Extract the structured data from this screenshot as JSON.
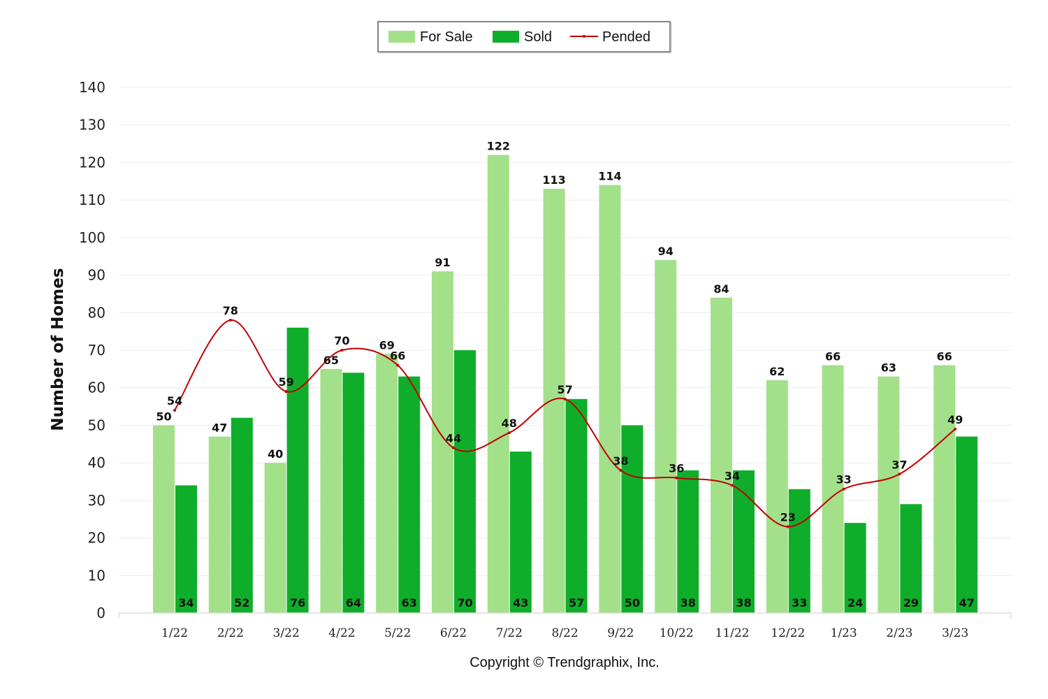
{
  "chart_data": {
    "type": "bar",
    "categories": [
      "1/22",
      "2/22",
      "3/22",
      "4/22",
      "5/22",
      "6/22",
      "7/22",
      "8/22",
      "9/22",
      "10/22",
      "11/22",
      "12/22",
      "1/23",
      "2/23",
      "3/23"
    ],
    "series": [
      {
        "name": "For Sale",
        "type": "bar",
        "color": "#a3e08a",
        "values": [
          50,
          47,
          40,
          65,
          69,
          91,
          122,
          113,
          114,
          94,
          84,
          62,
          66,
          63,
          66
        ]
      },
      {
        "name": "Sold",
        "type": "bar",
        "color": "#0fae2a",
        "values": [
          34,
          52,
          76,
          64,
          63,
          70,
          43,
          57,
          50,
          38,
          38,
          33,
          24,
          29,
          47
        ]
      },
      {
        "name": "Pended",
        "type": "line",
        "color": "#c00000",
        "values": [
          54,
          78,
          59,
          70,
          66,
          44,
          48,
          57,
          38,
          36,
          34,
          23,
          33,
          37,
          49
        ]
      }
    ],
    "ylabel": "Number of Homes",
    "ylim": [
      0,
      140
    ],
    "yticks": [
      0,
      10,
      20,
      30,
      40,
      50,
      60,
      70,
      80,
      90,
      100,
      110,
      120,
      130,
      140
    ],
    "grid": true,
    "legend_position": "top-center"
  },
  "footer": {
    "copyright": "Copyright © Trendgraphix, Inc."
  }
}
